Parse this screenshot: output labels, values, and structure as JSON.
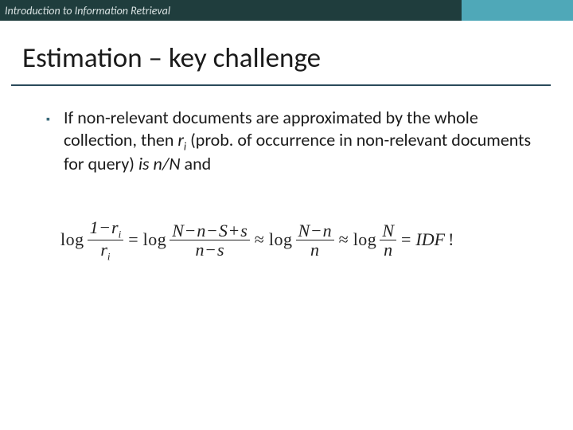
{
  "header": {
    "course_title": "Introduction to Information Retrieval",
    "colors": {
      "left_bg": "#1f3d3d",
      "right_bg": "#4fa8b8",
      "text": "#d9e2e2"
    }
  },
  "title": {
    "text": "Estimation – key challenge",
    "underline_color": "#2a4a5a",
    "fontsize": 35
  },
  "bullet": {
    "text_1": "If non-relevant documents are approximated by the whole collection, then ",
    "var_r": "r",
    "var_r_sub": "i",
    "text_2": " (prob. of occurrence in non-relevant documents for query) ",
    "is_word": "is ",
    "ratio": "n/N",
    "text_3": " and",
    "marker": "▪",
    "marker_color": "#3a6a7a",
    "fontsize": 22
  },
  "equation": {
    "log": "log",
    "eq": "=",
    "approx": "≈",
    "frac1": {
      "num_a": "1",
      "minus": "−",
      "num_b": "r",
      "num_b_sub": "i",
      "den": "r",
      "den_sub": "i"
    },
    "frac2": {
      "N": "N",
      "minus": "−",
      "n": "n",
      "S": "S",
      "plus": "+",
      "s": "s",
      "den_n": "n",
      "den_s": "s"
    },
    "frac3": {
      "N": "N",
      "minus": "−",
      "n": "n",
      "den": "n"
    },
    "frac4": {
      "N": "N",
      "den": "n"
    },
    "idf": "IDF",
    "bang": "!",
    "fontsize": 22,
    "font_family": "Times New Roman"
  }
}
